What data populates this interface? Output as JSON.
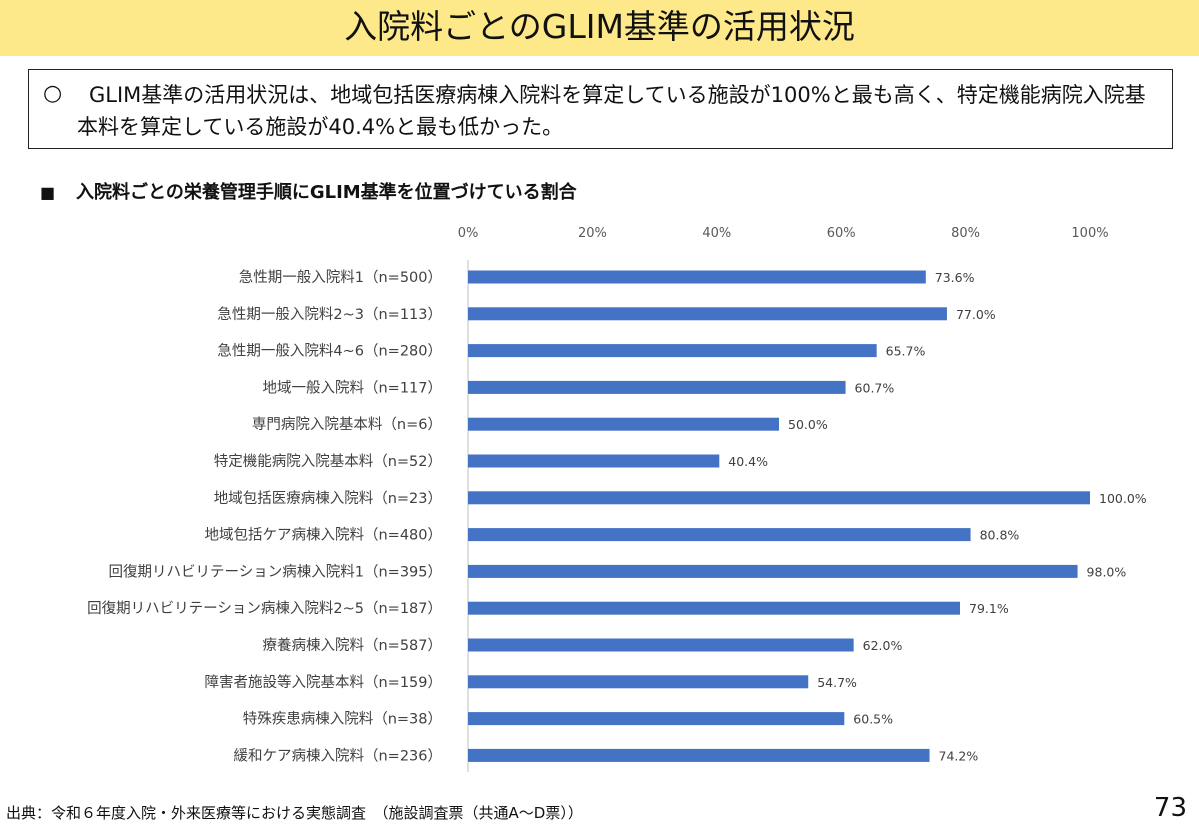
{
  "title": "入院料ごとのGLIM基準の活用状況",
  "summary": {
    "bullet": "○",
    "text": "GLIM基準の活用状況は、地域包括医療病棟入院料を算定している施設が100%と最も高く、特定機能病院入院基本料を算定している施設が40.4%と最も低かった。"
  },
  "subheading": {
    "mark": "■",
    "text": "入院料ごとの栄養管理手順にGLIM基準を位置づけている割合"
  },
  "source": "出典：令和６年度入院・外来医療等における実態調査　（施設調査票（共通A～D票））",
  "page_number": "73",
  "colors": {
    "bar": "#4472c4",
    "title_bg": "#fde98a",
    "axis": "#bfbfbf"
  },
  "chart_data": {
    "type": "bar",
    "orientation": "horizontal",
    "title": "",
    "xlabel": "",
    "ylabel": "",
    "xlim": [
      0,
      100
    ],
    "xticks": [
      "0%",
      "20%",
      "40%",
      "60%",
      "80%",
      "100%"
    ],
    "categories": [
      "急性期一般入院料1（n=500）",
      "急性期一般入院料2~3（n=113）",
      "急性期一般入院料4~6（n=280）",
      "地域一般入院料（n=117）",
      "専門病院入院基本料（n=6）",
      "特定機能病院入院基本料（n=52）",
      "地域包括医療病棟入院料（n=23）",
      "地域包括ケア病棟入院料（n=480）",
      "回復期リハビリテーション病棟入院料1（n=395）",
      "回復期リハビリテーション病棟入院料2~5（n=187）",
      "療養病棟入院料（n=587）",
      "障害者施設等入院基本料（n=159）",
      "特殊疾患病棟入院料（n=38）",
      "緩和ケア病棟入院料（n=236）"
    ],
    "values": [
      73.6,
      77.0,
      65.7,
      60.7,
      50.0,
      40.4,
      100.0,
      80.8,
      98.0,
      79.1,
      62.0,
      54.7,
      60.5,
      74.2
    ],
    "data_labels": [
      "73.6%",
      "77.0%",
      "65.7%",
      "60.7%",
      "50.0%",
      "40.4%",
      "100.0%",
      "80.8%",
      "98.0%",
      "79.1%",
      "62.0%",
      "54.7%",
      "60.5%",
      "74.2%"
    ],
    "grid": false,
    "legend": "none"
  }
}
